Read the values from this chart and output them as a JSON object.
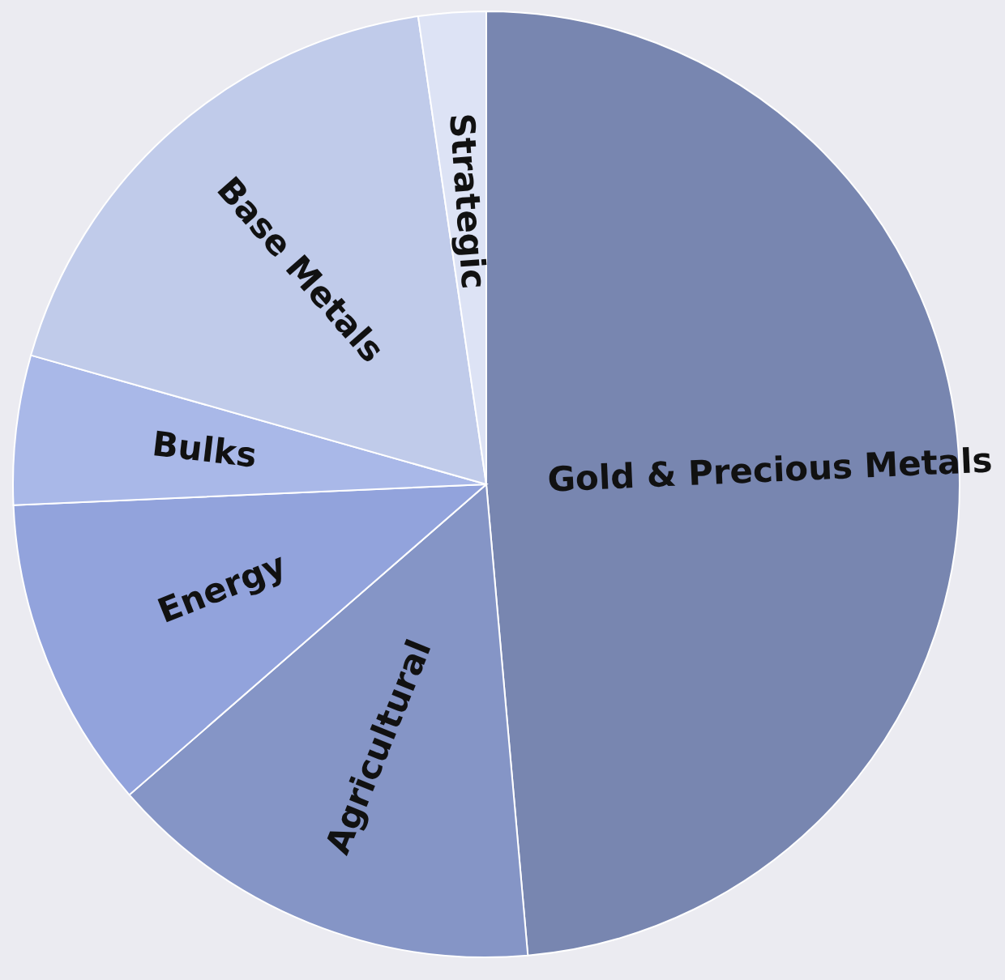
{
  "chart_data": {
    "type": "pie",
    "categories": [
      "Gold & Precious Metals",
      "Agricultural",
      "Energy",
      "Bulks",
      "Base Metals",
      "Strategic"
    ],
    "values": [
      48.6,
      15,
      10.7,
      5.1,
      18.3,
      2.3
    ],
    "colors": [
      "#7886b0",
      "#8595c6",
      "#92a3dc",
      "#a9b8e8",
      "#c0cbea",
      "#dde3f5"
    ],
    "legend": false
  }
}
